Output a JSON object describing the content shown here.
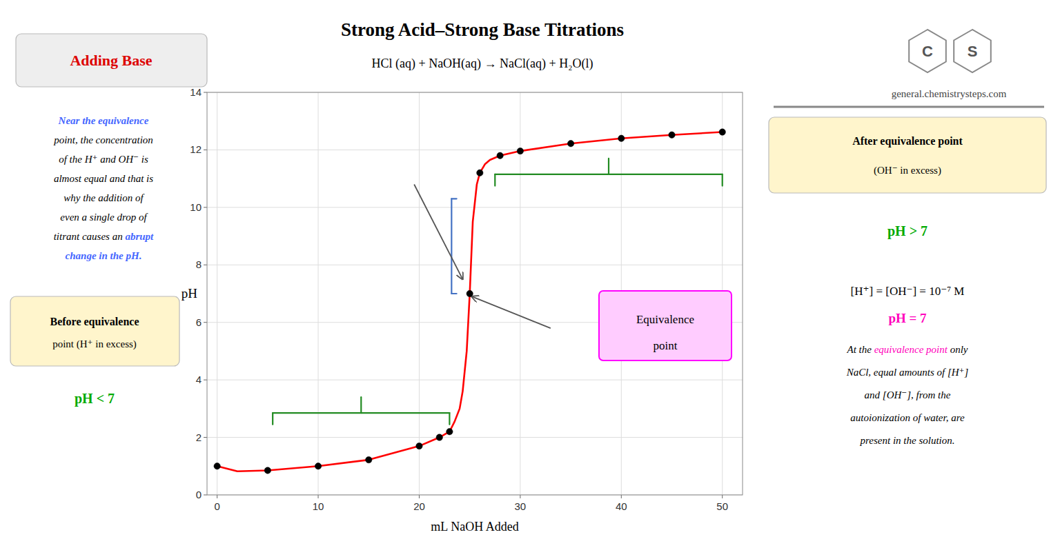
{
  "chart_data": {
    "type": "line",
    "title": "Strong Acid–Strong Base Titrations",
    "subtitle": "HCl (aq) + NaOH(aq) → NaCl(aq) + H₂O(l)",
    "x_label": "mL NaOH Added",
    "y_label": "pH",
    "xlim": [
      -1,
      52
    ],
    "ylim": [
      0,
      14
    ],
    "xticks": [
      0,
      10,
      20,
      30,
      40,
      50
    ],
    "yticks": [
      0,
      2,
      4,
      6,
      8,
      10,
      12,
      14
    ],
    "grid": true,
    "series": [
      {
        "type": "line",
        "color": "#FF0000",
        "line_style": "solid",
        "x": [
          0,
          2,
          5,
          10,
          15,
          20,
          22,
          23,
          23.5,
          24.0,
          24.3,
          24.7,
          25.0,
          25.3,
          25.7,
          26.0,
          26.5,
          27,
          28,
          30,
          35,
          40,
          45,
          50
        ],
        "values": [
          1.0,
          0.82,
          0.85,
          1.0,
          1.22,
          1.7,
          2.0,
          2.2,
          2.55,
          3.0,
          3.6,
          5.0,
          7.0,
          9.5,
          10.8,
          11.2,
          11.5,
          11.65,
          11.8,
          11.96,
          12.22,
          12.4,
          12.52,
          12.62
        ]
      },
      {
        "type": "scatter",
        "color": "#000000",
        "marker": "circle",
        "x": [
          0,
          5,
          10,
          15,
          20,
          22,
          23,
          25.0,
          26.0,
          28,
          30,
          35,
          40,
          45,
          50
        ],
        "values": [
          1.0,
          0.85,
          1.0,
          1.22,
          1.7,
          2.0,
          2.2,
          7.0,
          11.2,
          11.8,
          11.96,
          12.22,
          12.4,
          12.52,
          12.62
        ]
      }
    ],
    "brackets": [
      {
        "x": 23.2,
        "y": [
          7.0,
          10.3
        ],
        "color": "#4472C4"
      },
      {
        "x": [
          5.5,
          23.0
        ],
        "y": 2.85,
        "color": "#228B22"
      },
      {
        "x": [
          27.5,
          50.0
        ],
        "y": 11.15,
        "color": "#228B22"
      }
    ],
    "arrows": [
      {
        "start": [
          19.5,
          10.8
        ],
        "end": [
          24.3,
          7.5
        ],
        "color": "#555555"
      },
      {
        "start": [
          33.0,
          5.8
        ],
        "end": [
          25.2,
          6.9
        ],
        "color": "#555555"
      }
    ],
    "annotations": {
      "header": {
        "text": "Adding Base",
        "color": "#DD0000"
      },
      "left_note": [
        [
          {
            "text": "Near the equivalence",
            "color": "#4466FF"
          }
        ],
        [
          {
            "text": "point, the concentration"
          }
        ],
        [
          {
            "text": "of the H⁺ and OH⁻ is"
          }
        ],
        [
          {
            "text": "almost equal and that is"
          }
        ],
        [
          {
            "text": "why the addition of"
          }
        ],
        [
          {
            "text": "even a single drop of"
          }
        ],
        [
          {
            "text": "titrant causes an "
          },
          {
            "text": "abrupt",
            "color": "#4466FF"
          }
        ],
        [
          {
            "text": "change in the pH.",
            "color": "#4466FF"
          }
        ]
      ],
      "before_box": {
        "lines": [
          "Before equivalence",
          "point (H⁺ in excess)"
        ],
        "color": "#FFF5CC"
      },
      "before_ph": {
        "text": "pH < 7",
        "color": "#00AA00"
      },
      "logo": [
        "C",
        "S"
      ],
      "website": "general.chemistrysteps.com",
      "after_box": {
        "lines": [
          "After equivalence point",
          "(OH⁻ in excess)"
        ],
        "color": "#FFF5CC"
      },
      "after_ph": {
        "text": "pH > 7",
        "color": "#00AA00"
      },
      "equivalence_box": {
        "lines": [
          "Equivalence",
          "point"
        ],
        "color": "#FFCCFF"
      },
      "equivalence_formula": "[H⁺] = [OH⁻] = 10⁻⁷ M",
      "equivalence_ph": {
        "text": "pH = 7",
        "color": "#FF00BB"
      },
      "right_note": [
        [
          {
            "text": "At the "
          },
          {
            "text": "equivalence point",
            "color": "#FF00BB"
          },
          {
            "text": " only"
          }
        ],
        [
          {
            "text": "NaCl, equal amounts of [H⁺]"
          }
        ],
        [
          {
            "text": "and [OH⁻], from the"
          }
        ],
        [
          {
            "text": "autoionization of water, are"
          }
        ],
        [
          {
            "text": "present in the solution."
          }
        ]
      ]
    }
  }
}
